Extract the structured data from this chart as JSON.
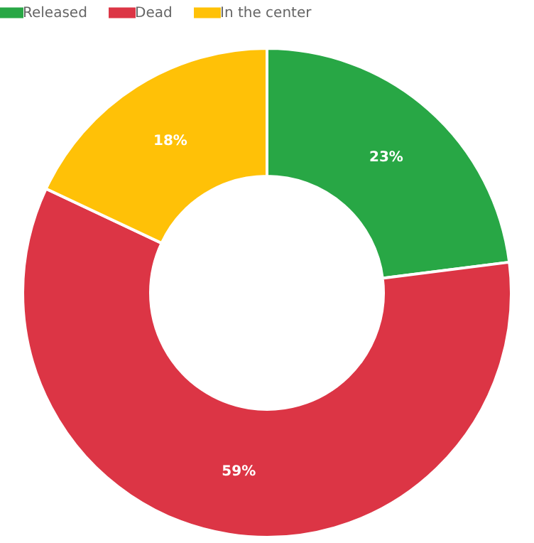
{
  "chart_data": {
    "type": "donut",
    "categories": [
      "Released",
      "Dead",
      "In the center"
    ],
    "values": [
      23,
      59,
      18
    ],
    "colors": [
      "#28a745",
      "#dc3545",
      "#ffc107"
    ],
    "value_labels": [
      "23%",
      "59%",
      "18%"
    ],
    "legend": "top"
  }
}
